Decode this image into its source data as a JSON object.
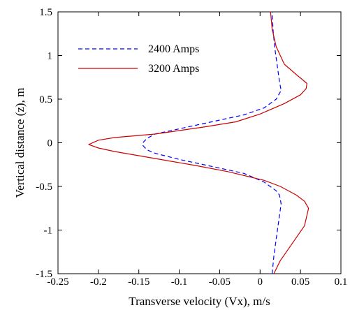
{
  "chart_data": {
    "type": "line",
    "title": "",
    "xlabel": "Transverse velocity (Vx), m/s",
    "ylabel": "Vertical distance (z), m",
    "xlim": [
      -0.25,
      0.1
    ],
    "ylim": [
      -1.5,
      1.5
    ],
    "xticks": [
      -0.25,
      -0.2,
      -0.15,
      -0.1,
      -0.05,
      0,
      0.05,
      0.1
    ],
    "xtick_labels": [
      "-0.25",
      "-0.2",
      "-0.15",
      "-0.1",
      "-0.05",
      "0",
      "0.05",
      "0.1"
    ],
    "yticks": [
      -1.5,
      -1,
      -0.5,
      0,
      0.5,
      1,
      1.5
    ],
    "ytick_labels": [
      "-1.5",
      "-1",
      "-0.5",
      "0",
      "0.5",
      "1",
      "1.5"
    ],
    "grid": false,
    "legend_position": "top-left",
    "series": [
      {
        "name": "2400 Amps",
        "color": "#0000ff",
        "style": "dashed",
        "points": [
          [
            0.015,
            -1.5
          ],
          [
            0.017,
            -1.3
          ],
          [
            0.02,
            -1.1
          ],
          [
            0.023,
            -0.9
          ],
          [
            0.026,
            -0.7
          ],
          [
            0.024,
            -0.6
          ],
          [
            0.02,
            -0.55
          ],
          [
            0.005,
            -0.45
          ],
          [
            -0.02,
            -0.35
          ],
          [
            -0.06,
            -0.27
          ],
          [
            -0.1,
            -0.19
          ],
          [
            -0.13,
            -0.12
          ],
          [
            -0.14,
            -0.08
          ],
          [
            -0.145,
            -0.03
          ],
          [
            -0.145,
            0.0
          ],
          [
            -0.14,
            0.05
          ],
          [
            -0.13,
            0.1
          ],
          [
            -0.1,
            0.16
          ],
          [
            -0.06,
            0.24
          ],
          [
            -0.02,
            0.32
          ],
          [
            0.005,
            0.4
          ],
          [
            0.02,
            0.5
          ],
          [
            0.026,
            0.6
          ],
          [
            0.024,
            0.7
          ],
          [
            0.021,
            0.9
          ],
          [
            0.018,
            1.1
          ],
          [
            0.016,
            1.3
          ],
          [
            0.015,
            1.5
          ]
        ]
      },
      {
        "name": "3200 Amps",
        "color": "#cc0000",
        "style": "solid",
        "points": [
          [
            0.017,
            -1.5
          ],
          [
            0.025,
            -1.35
          ],
          [
            0.04,
            -1.15
          ],
          [
            0.055,
            -0.95
          ],
          [
            0.06,
            -0.75
          ],
          [
            0.055,
            -0.67
          ],
          [
            0.045,
            -0.6
          ],
          [
            0.025,
            -0.5
          ],
          [
            0.005,
            -0.43
          ],
          [
            -0.04,
            -0.33
          ],
          [
            -0.08,
            -0.26
          ],
          [
            -0.13,
            -0.18
          ],
          [
            -0.18,
            -0.1
          ],
          [
            -0.2,
            -0.06
          ],
          [
            -0.212,
            -0.02
          ],
          [
            -0.2,
            0.03
          ],
          [
            -0.18,
            0.06
          ],
          [
            -0.13,
            0.1
          ],
          [
            -0.07,
            0.18
          ],
          [
            -0.03,
            0.24
          ],
          [
            0.0,
            0.33
          ],
          [
            0.03,
            0.45
          ],
          [
            0.05,
            0.55
          ],
          [
            0.057,
            0.62
          ],
          [
            0.058,
            0.68
          ],
          [
            0.045,
            0.78
          ],
          [
            0.03,
            0.9
          ],
          [
            0.02,
            1.1
          ],
          [
            0.015,
            1.3
          ],
          [
            0.013,
            1.5
          ]
        ]
      }
    ]
  }
}
